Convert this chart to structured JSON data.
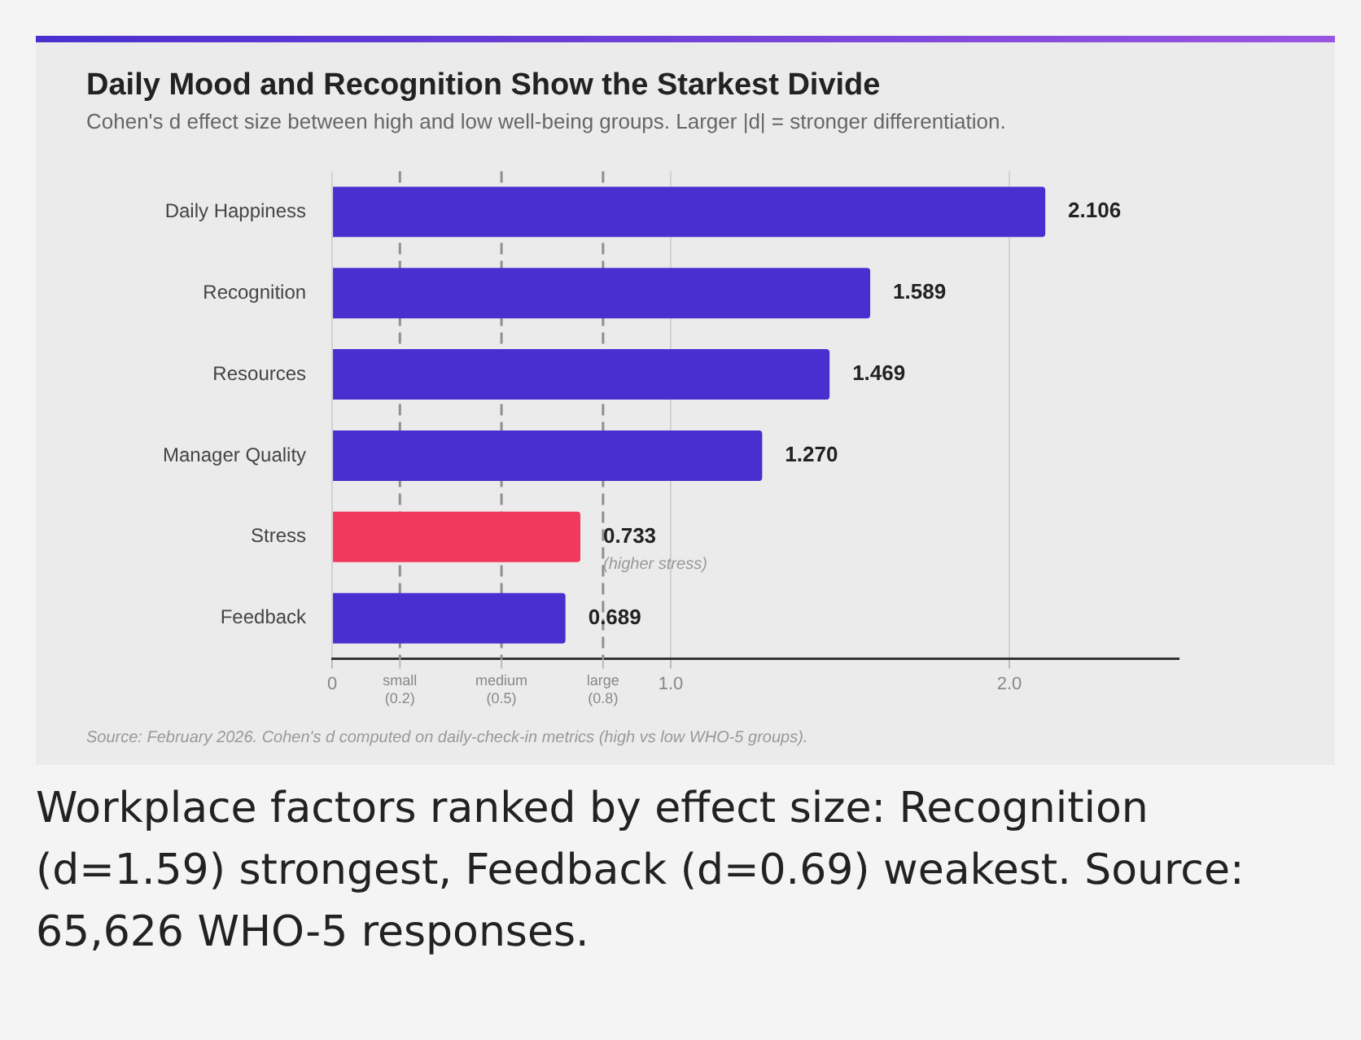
{
  "chart_data": {
    "type": "bar",
    "orientation": "horizontal",
    "title": "Daily Mood and Recognition Show the Starkest Divide",
    "subtitle": "Cohen's d effect size between high and low well-being groups. Larger |d| = stronger differentiation.",
    "categories": [
      "Daily Happiness",
      "Recognition",
      "Resources",
      "Manager Quality",
      "Stress",
      "Feedback"
    ],
    "values": [
      2.106,
      1.589,
      1.469,
      1.27,
      0.733,
      0.689
    ],
    "colors": [
      "#4a2fd0",
      "#4a2fd0",
      "#4a2fd0",
      "#4a2fd0",
      "#f0395c",
      "#4a2fd0"
    ],
    "value_labels": [
      "2.106",
      "1.589",
      "1.469",
      "1.270",
      "0.733",
      "0.689"
    ],
    "xlim": [
      0,
      2.5
    ],
    "xticks": [
      0,
      {
        "value": 1,
        "label": "1.0"
      },
      {
        "value": 2,
        "label": "2.0"
      }
    ],
    "grid": "x",
    "ref_lines": [
      {
        "axis": "x",
        "value": 0.2,
        "line_style": "dashed",
        "label": "small (0.2)"
      },
      {
        "axis": "x",
        "value": 0.5,
        "line_style": "dashed",
        "label": "medium (0.5)"
      },
      {
        "axis": "x",
        "value": 0.8,
        "line_style": "dashed",
        "label": "large (0.8)"
      }
    ],
    "legend": false,
    "annotations": [
      {
        "text": "(higher stress)",
        "x": 0.733,
        "y": "Stress"
      },
      "Source: February 2026. Cohen's d computed on daily-check-in metrics (high vs low WHO-5 groups).",
      "Workplace factors ranked by effect size: Recognition (d=1.59) strongest, Feedback (d=0.69) weakest. Source: 65,626 WHO-5 responses."
    ]
  }
}
